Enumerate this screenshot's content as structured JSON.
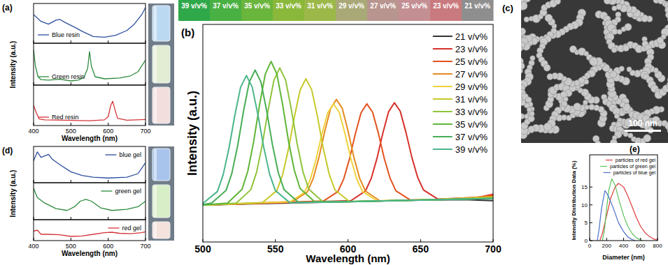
{
  "chart_data": [
    {
      "type": "line",
      "title": "(a)",
      "x_label": "Wavelength (nm)",
      "y_label": "Intensity (a.u.)",
      "xlim": [
        400,
        700
      ],
      "xticks": [
        400,
        500,
        600,
        700
      ],
      "ylim": [
        0,
        1
      ],
      "tick_labels": "x",
      "legend": "lower left",
      "series": [
        {
          "name": "Blue resin",
          "color": "#2b4f9e",
          "x": [
            400,
            420,
            440,
            460,
            470,
            485,
            500,
            515,
            530,
            560,
            590,
            620,
            650,
            670,
            690,
            700
          ],
          "values": [
            0.72,
            0.55,
            0.48,
            0.58,
            0.6,
            0.52,
            0.45,
            0.38,
            0.3,
            0.17,
            0.15,
            0.2,
            0.32,
            0.48,
            0.72,
            0.9
          ]
        },
        {
          "name": "Green resin",
          "color": "#2e8b3e",
          "x": [
            400,
            405,
            412,
            420,
            440,
            470,
            500,
            520,
            535,
            545,
            550,
            555,
            565,
            590,
            630,
            660,
            680,
            700
          ],
          "values": [
            0.85,
            0.45,
            0.2,
            0.13,
            0.12,
            0.14,
            0.1,
            0.12,
            0.18,
            0.4,
            0.8,
            0.45,
            0.2,
            0.15,
            0.17,
            0.22,
            0.32,
            0.6
          ]
        },
        {
          "name": "Red resin",
          "color": "#d4343a",
          "x": [
            400,
            408,
            415,
            430,
            480,
            550,
            590,
            600,
            607,
            612,
            618,
            625,
            650,
            700
          ],
          "values": [
            0.5,
            0.3,
            0.16,
            0.14,
            0.13,
            0.12,
            0.14,
            0.22,
            0.5,
            0.6,
            0.4,
            0.18,
            0.13,
            0.15
          ]
        }
      ]
    },
    {
      "type": "line",
      "title": "(b)",
      "x_label": "Wavelength (nm)",
      "y_label": "Intensity (a.u.)",
      "xlim": [
        500,
        700
      ],
      "xticks": [
        500,
        550,
        600,
        650,
        700
      ],
      "ylim": [
        0,
        1
      ],
      "tick_labels": "x",
      "legend": "upper right",
      "swatch_labels": [
        "39 v/v%",
        "37 v/v%",
        "35 v/v%",
        "33 v/v%",
        "31 v/v%",
        "29 v/v%",
        "27 v/v%",
        "25 v/v%",
        "23 v/v%",
        "21 v/v%"
      ],
      "swatch_colors": [
        "#2fa84a",
        "#49b043",
        "#6ab53c",
        "#8ab83a",
        "#9bb848",
        "#a9a877",
        "#b8958f",
        "#c38f93",
        "#c97a7e",
        "#8e8e8e"
      ],
      "series": [
        {
          "name": "21 v/v%",
          "color": "#333333",
          "x": [
            500,
            550,
            600,
            650,
            680,
            700
          ],
          "values": [
            0.17,
            0.178,
            0.185,
            0.192,
            0.195,
            0.19
          ]
        },
        {
          "name": "23 v/v%",
          "color": "#d6312b",
          "x": [
            500,
            602,
            612,
            616,
            620,
            624,
            628,
            632,
            636,
            640,
            644,
            648,
            652,
            662,
            690,
            700
          ],
          "values": [
            0.17,
            0.19,
            0.234,
            0.292,
            0.385,
            0.5,
            0.599,
            0.64,
            0.601,
            0.502,
            0.389,
            0.297,
            0.239,
            0.197,
            0.205,
            0.22
          ]
        },
        {
          "name": "25 v/v%",
          "color": "#e2531e",
          "x": [
            500,
            583,
            593,
            597,
            601,
            605,
            609,
            613,
            617,
            621,
            625,
            629,
            633,
            643,
            680,
            700
          ],
          "values": [
            0.17,
            0.188,
            0.231,
            0.289,
            0.381,
            0.495,
            0.594,
            0.635,
            0.596,
            0.498,
            0.384,
            0.293,
            0.235,
            0.193,
            0.198,
            0.215
          ]
        },
        {
          "name": "27 v/v%",
          "color": "#e58a1f",
          "x": [
            500,
            562,
            572,
            576,
            580,
            584,
            588,
            592,
            596,
            600,
            604,
            608,
            612,
            622,
            660,
            700
          ],
          "values": [
            0.17,
            0.186,
            0.23,
            0.291,
            0.389,
            0.509,
            0.613,
            0.655,
            0.615,
            0.511,
            0.391,
            0.293,
            0.234,
            0.189,
            0.195,
            0.21
          ]
        },
        {
          "name": "29 v/v%",
          "color": "#efd23c",
          "x": [
            500,
            560,
            570,
            574,
            578,
            582,
            586,
            590,
            594,
            598,
            602,
            606,
            610,
            620,
            660,
            700
          ],
          "values": [
            0.17,
            0.184,
            0.228,
            0.287,
            0.38,
            0.495,
            0.594,
            0.635,
            0.596,
            0.497,
            0.382,
            0.29,
            0.232,
            0.189,
            0.195,
            0.205
          ]
        },
        {
          "name": "31 v/v%",
          "color": "#c6c92a",
          "x": [
            500,
            541,
            551,
            555,
            559,
            563,
            567,
            571,
            575,
            579,
            583,
            587,
            591,
            601,
            650,
            700
          ],
          "values": [
            0.17,
            0.181,
            0.236,
            0.31,
            0.428,
            0.573,
            0.698,
            0.75,
            0.7,
            0.575,
            0.43,
            0.313,
            0.239,
            0.186,
            0.193,
            0.205
          ]
        },
        {
          "name": "33 v/v%",
          "color": "#8fc43a",
          "x": [
            500,
            523,
            533,
            537,
            541,
            545,
            549,
            553,
            557,
            561,
            565,
            569,
            573,
            583,
            620,
            700
          ],
          "values": [
            0.17,
            0.179,
            0.24,
            0.32,
            0.449,
            0.607,
            0.744,
            0.8,
            0.745,
            0.608,
            0.451,
            0.322,
            0.243,
            0.183,
            0.188,
            0.2
          ]
        },
        {
          "name": "35 v/v%",
          "color": "#5fb536",
          "x": [
            500,
            517,
            527,
            531,
            535,
            539,
            543,
            547,
            551,
            555,
            559,
            563,
            567,
            577,
            620,
            700
          ],
          "values": [
            0.17,
            0.179,
            0.242,
            0.326,
            0.461,
            0.628,
            0.771,
            0.83,
            0.772,
            0.63,
            0.464,
            0.33,
            0.246,
            0.185,
            0.188,
            0.2
          ]
        },
        {
          "name": "37 v/v%",
          "color": "#47ad55",
          "x": [
            500,
            506,
            516,
            520,
            524,
            528,
            532,
            536,
            540,
            544,
            548,
            552,
            556,
            566,
            600,
            700
          ],
          "values": [
            0.172,
            0.179,
            0.237,
            0.316,
            0.443,
            0.6,
            0.735,
            0.79,
            0.736,
            0.602,
            0.445,
            0.318,
            0.24,
            0.182,
            0.185,
            0.2
          ]
        },
        {
          "name": "39 v/v%",
          "color": "#4ab58a",
          "x": [
            500,
            510,
            514,
            518,
            522,
            526,
            530,
            534,
            538,
            542,
            546,
            550,
            560,
            600,
            700
          ],
          "values": [
            0.177,
            0.232,
            0.309,
            0.431,
            0.581,
            0.711,
            0.765,
            0.712,
            0.583,
            0.434,
            0.312,
            0.236,
            0.18,
            0.185,
            0.2
          ]
        }
      ]
    },
    {
      "type": "line",
      "title": "(d)",
      "x_label": "Wavelength (nm)",
      "y_label": "Intensity (a.u.)",
      "xlim": [
        400,
        700
      ],
      "xticks": [
        400,
        500,
        600,
        700
      ],
      "ylim": [
        0,
        1
      ],
      "tick_labels": "x",
      "legend": "upper right",
      "series": [
        {
          "name": "blue gel",
          "color": "#2b4f9e",
          "x": [
            400,
            410,
            420,
            440,
            450,
            470,
            500,
            530,
            560,
            600,
            650,
            680,
            700
          ],
          "values": [
            0.6,
            0.85,
            0.7,
            0.78,
            0.65,
            0.5,
            0.3,
            0.2,
            0.15,
            0.13,
            0.15,
            0.25,
            0.55
          ]
        },
        {
          "name": "green gel",
          "color": "#2e8b3e",
          "x": [
            400,
            410,
            430,
            460,
            490,
            510,
            525,
            540,
            555,
            580,
            610,
            650,
            680,
            700
          ],
          "values": [
            0.85,
            0.6,
            0.45,
            0.3,
            0.25,
            0.35,
            0.5,
            0.55,
            0.5,
            0.32,
            0.25,
            0.28,
            0.35,
            0.5
          ]
        },
        {
          "name": "red gel",
          "color": "#d4343a",
          "x": [
            400,
            410,
            420,
            440,
            470,
            500,
            530,
            560,
            590,
            610,
            630,
            660,
            690,
            700
          ],
          "values": [
            0.45,
            0.5,
            0.3,
            0.3,
            0.28,
            0.2,
            0.22,
            0.3,
            0.38,
            0.4,
            0.35,
            0.33,
            0.38,
            0.42
          ]
        }
      ]
    },
    {
      "type": "line",
      "title": "(e)",
      "x_label": "Diameter (nm)",
      "y_label": "Intensity Distribution Data (%)",
      "xlim": [
        0,
        800
      ],
      "xticks": [
        0,
        200,
        400,
        600,
        800
      ],
      "ylim": [
        0,
        24
      ],
      "yticks": [
        0,
        5,
        10,
        15
      ],
      "legend": "upper right",
      "series": [
        {
          "name": "particles of red gel",
          "color": "#e03c3c",
          "x": [
            120,
            150,
            200,
            250,
            300,
            340,
            400,
            450,
            500,
            550,
            600,
            650,
            700,
            750,
            800
          ],
          "values": [
            0,
            2,
            7,
            12,
            15,
            16,
            15,
            12.5,
            9.5,
            6.5,
            4,
            2.3,
            1.2,
            0.5,
            0.1
          ]
        },
        {
          "name": "particles of green gel",
          "color": "#5cc25a",
          "x": [
            150,
            175,
            200,
            225,
            260,
            300,
            350,
            400,
            450,
            500,
            550,
            600,
            630
          ],
          "values": [
            0,
            3,
            9,
            14,
            17.3,
            15.5,
            11,
            7,
            4,
            2,
            0.8,
            0.2,
            0
          ]
        },
        {
          "name": "particles of blue gel",
          "color": "#4a6fc9",
          "x": [
            90,
            110,
            140,
            180,
            220,
            280,
            340,
            400,
            450,
            500,
            540
          ],
          "values": [
            0,
            3,
            9,
            14,
            12.5,
            9,
            5,
            2.5,
            1,
            0.3,
            0
          ]
        }
      ]
    }
  ],
  "sem_image": {
    "label": "(c)",
    "scale_bar": "100 nm"
  }
}
